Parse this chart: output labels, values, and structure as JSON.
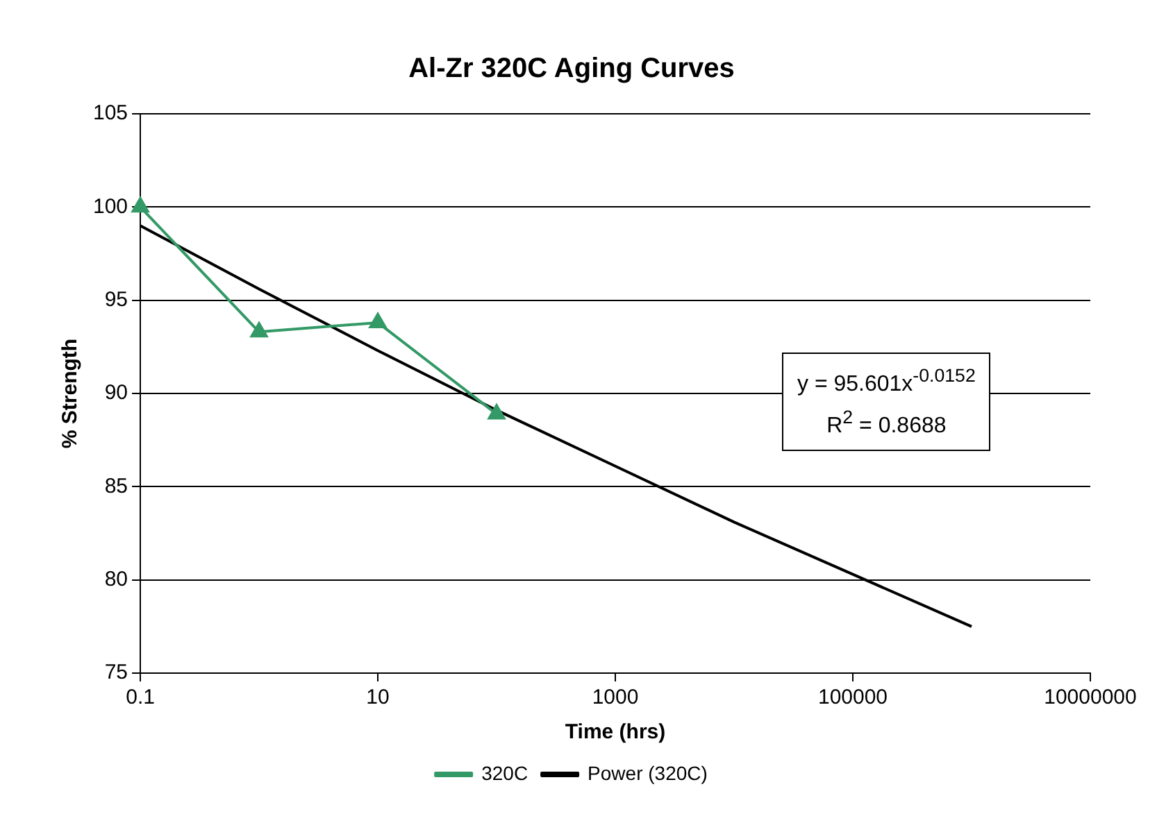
{
  "chart_data": {
    "type": "line",
    "title": "Al-Zr 320C Aging Curves",
    "xlabel": "Time (hrs)",
    "ylabel": "% Strength",
    "log": "x",
    "xlim": [
      0.1,
      10000000
    ],
    "xticks": [
      0.1,
      10,
      1000,
      100000,
      10000000
    ],
    "ylim": [
      75,
      105
    ],
    "yticks": [
      75,
      80,
      85,
      90,
      95,
      100,
      105
    ],
    "grid": "y",
    "legend": "bottom",
    "annotations": [
      "y = 95.601x$^{-0.0152}$",
      "R$^{2}$ = 0.8688"
    ],
    "series": [
      {
        "name": "320C",
        "color": "#339966",
        "marker": "triangle",
        "x": [
          0.1,
          1,
          10,
          100
        ],
        "values": [
          100,
          93.3,
          93.8,
          88.9
        ]
      },
      {
        "name": "Power (320C)",
        "color": "#000000",
        "marker": "none",
        "x": [
          0.1,
          1,
          10,
          100,
          1000,
          10000,
          100000,
          1000000
        ],
        "values": [
          99.0,
          95.6,
          92.3,
          89.1,
          86.1,
          83.1,
          80.3,
          77.5
        ]
      }
    ]
  }
}
